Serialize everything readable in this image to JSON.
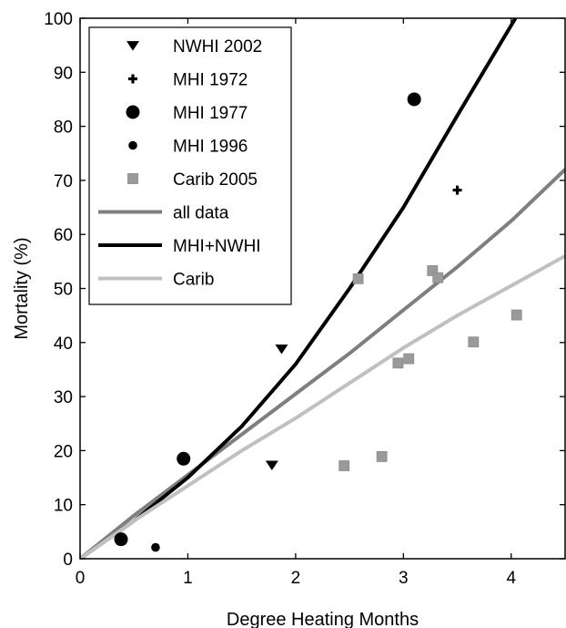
{
  "chart_data": {
    "type": "scatter",
    "xlabel": "Degree Heating Months",
    "ylabel": "Mortality (%)",
    "xlim": [
      0,
      4.5
    ],
    "ylim": [
      0,
      100
    ],
    "xticks": [
      0,
      1,
      2,
      3,
      4
    ],
    "yticks": [
      0,
      10,
      20,
      30,
      40,
      50,
      60,
      70,
      80,
      90,
      100
    ],
    "grid": false,
    "legend_position": "top-left",
    "scatter_series": [
      {
        "name": "NWHI 2002",
        "marker": "triangle-down",
        "color": "#000000",
        "points": [
          [
            1.87,
            38.8
          ],
          [
            1.78,
            17.3
          ]
        ]
      },
      {
        "name": "MHI 1972",
        "marker": "plus",
        "color": "#000000",
        "points": [
          [
            3.5,
            68.2
          ]
        ]
      },
      {
        "name": "MHI 1977",
        "marker": "circle-large",
        "color": "#000000",
        "points": [
          [
            0.38,
            3.6
          ],
          [
            0.96,
            18.5
          ],
          [
            3.1,
            85.0
          ]
        ]
      },
      {
        "name": "MHI 1996",
        "marker": "circle-small",
        "color": "#000000",
        "points": [
          [
            0.7,
            2.1
          ]
        ]
      },
      {
        "name": "Carib 2005",
        "marker": "square",
        "color": "#9a9a9a",
        "points": [
          [
            2.45,
            17.2
          ],
          [
            2.58,
            51.8
          ],
          [
            2.8,
            18.9
          ],
          [
            2.95,
            36.2
          ],
          [
            3.05,
            37.0
          ],
          [
            3.27,
            53.3
          ],
          [
            3.32,
            52.0
          ],
          [
            3.65,
            40.1
          ],
          [
            4.05,
            45.1
          ]
        ]
      }
    ],
    "line_series": [
      {
        "name": "all data",
        "color": "#7f7f7f",
        "x": [
          0,
          0.5,
          1,
          1.5,
          2,
          2.5,
          3,
          3.5,
          4,
          4.5
        ],
        "y": [
          0,
          8,
          15.5,
          23,
          30.5,
          38,
          46,
          54,
          62.5,
          72
        ]
      },
      {
        "name": "MHI+NWHI",
        "color": "#000000",
        "x": [
          0,
          0.5,
          1,
          1.5,
          2,
          2.5,
          3,
          3.5,
          4.04
        ],
        "y": [
          0,
          7,
          15,
          24.5,
          36,
          50,
          65,
          82,
          100
        ]
      },
      {
        "name": "Carib",
        "color": "#c0c0c0",
        "x": [
          0,
          0.5,
          1,
          1.5,
          2,
          2.5,
          3,
          3.5,
          4,
          4.5
        ],
        "y": [
          0,
          7,
          13.5,
          20,
          26,
          32.5,
          39,
          45,
          50.5,
          56
        ]
      }
    ]
  }
}
